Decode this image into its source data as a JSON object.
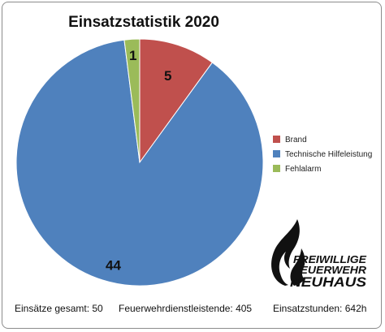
{
  "chart_data": {
    "type": "pie",
    "title": "Einsatzstatistik 2020",
    "start_angle_deg": 0,
    "direction": "clockwise",
    "categories": [
      "Brand",
      "Technische Hilfeleistung",
      "Fehlalarm"
    ],
    "values": [
      5,
      44,
      1
    ],
    "colors": [
      "#c0504d",
      "#4f81bd",
      "#9bbb59"
    ],
    "data_labels": [
      "5",
      "44",
      "1"
    ],
    "legend": {
      "position": "right",
      "entries": [
        "Brand",
        "Technische Hilfeleistung",
        "Fehlalarm"
      ]
    }
  },
  "footer": {
    "total": "Einsätze gesamt: 50",
    "members": "Feuerwehrdienstleistende: 405",
    "hours": "Einsatzstunden: 642h"
  },
  "logo": {
    "line1": "FREIWILLIGE",
    "line2": "FEUERWEHR",
    "line3": "NEUHAUS",
    "icon": "flame-icon"
  }
}
